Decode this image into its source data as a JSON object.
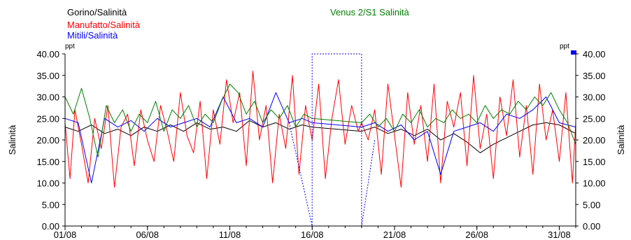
{
  "chart_data": {
    "type": "line",
    "ylabel_left": "Salinità",
    "ylabel_right": "Salinità",
    "y_unit_left": "ppt",
    "y_unit_right": "ppt",
    "ylim": [
      0,
      40
    ],
    "y_ticks": [
      "0.00",
      "5.00",
      "10.00",
      "15.00",
      "20.00",
      "25.00",
      "30.00",
      "35.00",
      "40.00"
    ],
    "x_ticks": [
      "01/08",
      "06/08",
      "11/08",
      "16/08",
      "21/08",
      "26/08",
      "31/08"
    ],
    "x_tick_days": [
      1,
      6,
      11,
      16,
      21,
      26,
      31
    ],
    "xlim_days": [
      1,
      32
    ],
    "legend": {
      "placement": "top-left"
    },
    "series": [
      {
        "name": "Gorino/Salinità",
        "color": "#000000",
        "style": "solid",
        "x": [
          1,
          1.8,
          2.6,
          3.4,
          4.2,
          5,
          5.8,
          6.6,
          7.4,
          8.2,
          9,
          9.8,
          10.6,
          11.4,
          12.2,
          13,
          13.8,
          14.6,
          15.4,
          16,
          19,
          19.8,
          20.6,
          21.4,
          22.2,
          23,
          23.8,
          24.6,
          25.4,
          26.2,
          27,
          27.8,
          28.6,
          29.4,
          30.2,
          31,
          32
        ],
        "y": [
          23,
          22,
          23.5,
          21.5,
          22.5,
          21,
          23,
          22,
          23.5,
          22,
          24,
          22.5,
          23,
          22,
          24.5,
          23,
          24,
          22.5,
          23.5,
          23,
          22,
          23,
          21.5,
          22.5,
          21,
          22.5,
          20,
          21.5,
          19.5,
          17,
          19,
          20.5,
          22,
          23.5,
          24,
          23.5,
          21.5
        ]
      },
      {
        "name": "Manufatto/Salinità",
        "color": "#ff0000",
        "style": "solid",
        "x": [
          1,
          1.3,
          1.6,
          2,
          2.4,
          2.8,
          3.2,
          3.6,
          4,
          4.4,
          4.8,
          5.2,
          5.6,
          6,
          6.4,
          6.8,
          7.2,
          7.6,
          8,
          8.4,
          8.8,
          9.2,
          9.6,
          10,
          10.4,
          10.8,
          11.2,
          11.6,
          12,
          12.4,
          12.8,
          13.2,
          13.6,
          14,
          14.4,
          14.8,
          15.2,
          15.6,
          16,
          16.4,
          16.8,
          17.2,
          17.6,
          18,
          18.4,
          18.8,
          19,
          19.4,
          19.8,
          20.2,
          20.6,
          21,
          21.4,
          21.8,
          22.2,
          22.6,
          23,
          23.4,
          23.8,
          24.2,
          24.6,
          25,
          25.4,
          25.8,
          26.2,
          26.6,
          27,
          27.4,
          27.8,
          28.2,
          28.6,
          29,
          29.4,
          29.8,
          30.2,
          30.6,
          31,
          31.4,
          31.8,
          32
        ],
        "y": [
          24,
          11,
          27,
          19,
          10,
          25,
          18,
          28,
          9,
          23,
          26,
          14,
          27,
          20,
          15,
          28,
          22,
          15,
          31,
          21,
          17,
          29,
          11,
          27,
          19,
          34,
          24,
          31,
          14,
          36,
          20,
          28,
          10,
          26,
          18,
          35,
          12,
          28,
          20,
          33,
          11,
          25,
          34,
          19,
          28,
          22,
          24,
          20,
          27,
          12,
          33,
          21,
          9,
          31,
          19,
          28,
          15,
          33,
          10,
          29,
          23,
          31,
          14,
          35,
          18,
          26,
          11,
          30,
          21,
          34,
          16,
          28,
          12,
          33,
          20,
          27,
          15,
          31,
          10,
          24
        ]
      },
      {
        "name": "Mitili/Salinità",
        "color": "#0000ff",
        "style": "solid",
        "x": [
          1,
          1.8,
          2.6,
          3.4,
          4.2,
          5,
          5.8,
          6.6,
          7.4,
          8.2,
          9,
          9.8,
          10.6,
          11.4,
          12.2,
          13,
          13.8,
          14.6,
          15.4,
          16,
          19,
          19.8,
          20.6,
          21.4,
          22.2,
          23,
          23.8,
          24.6,
          25.4,
          26.2,
          27,
          27.8,
          28.6,
          29.4,
          30.2,
          31,
          32
        ],
        "y": [
          25,
          24,
          10,
          25,
          23,
          24.5,
          22,
          25,
          23,
          24,
          25,
          23,
          30,
          24,
          25,
          23,
          31,
          24,
          25,
          24,
          23,
          24,
          22,
          23.5,
          20,
          22,
          12,
          22,
          23,
          24,
          22,
          26,
          25,
          27,
          30,
          24,
          23
        ]
      },
      {
        "name": "Venus 2/S1 Salinità",
        "color": "#008000",
        "style": "solid",
        "x": [
          1,
          1.5,
          2,
          2.5,
          3,
          3.5,
          4,
          4.5,
          5,
          5.5,
          6,
          6.5,
          7,
          7.5,
          8,
          8.5,
          9,
          9.5,
          10,
          10.5,
          11,
          11.5,
          12,
          12.5,
          13,
          13.5,
          14,
          14.5,
          15,
          15.5,
          16,
          19,
          19.5,
          20,
          20.5,
          21,
          21.5,
          22,
          22.5,
          23,
          23.5,
          24,
          24.5,
          25,
          25.5,
          26,
          26.5,
          27,
          27.5,
          28,
          28.5,
          29,
          29.5,
          30,
          30.5,
          31,
          31.5,
          32
        ],
        "y": [
          30,
          26,
          32,
          25,
          16,
          28,
          24,
          27,
          22,
          26,
          24,
          29,
          22,
          27,
          25,
          28,
          23,
          26,
          24,
          29,
          33,
          31,
          26,
          29,
          24,
          27,
          25,
          28,
          23,
          26,
          25,
          24,
          26,
          23,
          25,
          22,
          26,
          24,
          27,
          23,
          25,
          24,
          27,
          25,
          26,
          24,
          28,
          25,
          27,
          26,
          29,
          27,
          30,
          28,
          31,
          27,
          24,
          19
        ]
      },
      {
        "name": "",
        "color": "#0000ff",
        "style": "dotted",
        "x": [
          14.6,
          16,
          16,
          19,
          19,
          19.8
        ],
        "y": [
          24,
          0,
          40,
          40,
          0,
          20
        ]
      }
    ]
  }
}
